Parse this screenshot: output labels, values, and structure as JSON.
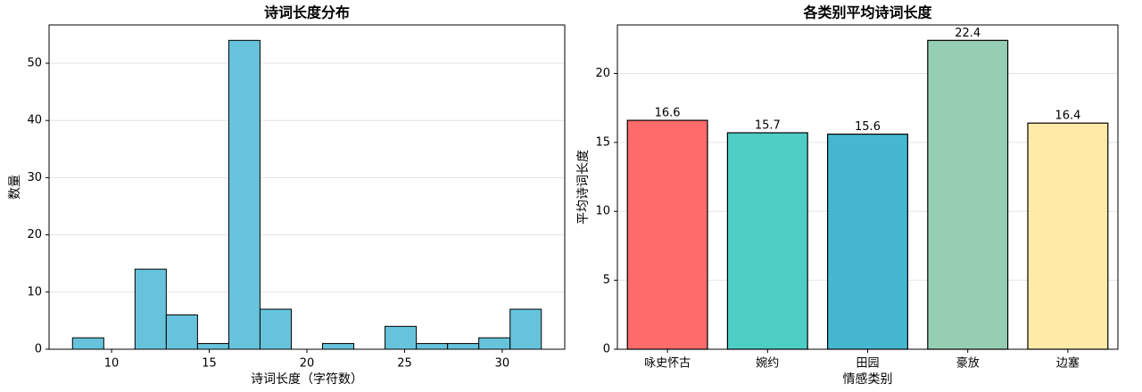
{
  "chart_data": [
    {
      "type": "histogram",
      "title": "诗词长度分布",
      "xlabel": "诗词长度（字符数）",
      "ylabel": "数量",
      "bins": [
        8,
        9.6,
        11.2,
        12.8,
        14.4,
        16,
        17.6,
        19.2,
        20.8,
        22.4,
        24,
        25.6,
        27.2,
        28.8,
        30.4,
        32
      ],
      "counts": [
        2,
        0,
        14,
        6,
        1,
        54,
        7,
        0,
        1,
        0,
        4,
        1,
        1,
        2,
        7
      ],
      "color": "#67c3dc",
      "edgecolor": "#000000",
      "xlim": [
        6.8,
        33.2
      ],
      "xticks": [
        10,
        15,
        20,
        25,
        30
      ],
      "ylim": [
        0,
        56.7
      ],
      "yticks": [
        0,
        10,
        20,
        30,
        40,
        50
      ],
      "grid": true
    },
    {
      "type": "bar",
      "title": "各类别平均诗词长度",
      "xlabel": "情感类别",
      "ylabel": "平均诗词长度",
      "categories": [
        "咏史怀古",
        "婉约",
        "田园",
        "豪放",
        "边塞"
      ],
      "values": [
        16.6,
        15.7,
        15.6,
        22.4,
        16.4
      ],
      "colors": [
        "#FF6B6B",
        "#4ECDC4",
        "#45B7D1",
        "#96CEB4",
        "#FFEAA7"
      ],
      "edgecolor": "#000000",
      "ylim": [
        0,
        23.52
      ],
      "yticks": [
        0,
        5,
        10,
        15,
        20
      ],
      "grid": true
    }
  ]
}
